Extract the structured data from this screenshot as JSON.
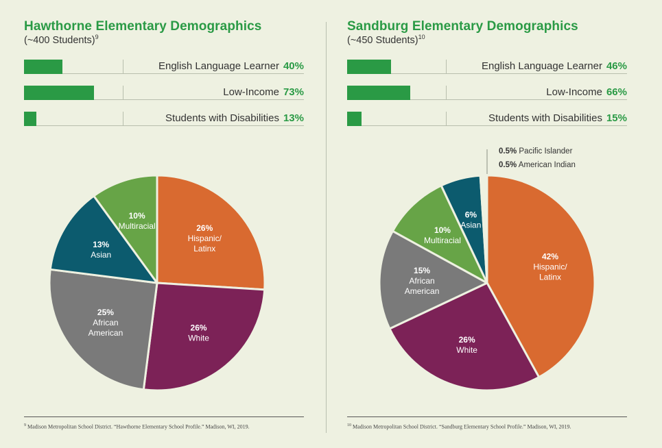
{
  "panels": [
    {
      "title": "Hawthorne Elementary Demographics",
      "subtitle": "(~400 Students)",
      "subtitle_sup": "9",
      "footnote_sup": "9",
      "footnote": "Madison Metropolitan School District. “Hawthorne Elementary School Profile.” Madison, WI, 2019."
    },
    {
      "title": "Sandburg Elementary Demographics",
      "subtitle": "(~450 Students)",
      "subtitle_sup": "10",
      "footnote_sup": "10",
      "footnote": "Madison Metropolitan School District. “Sandburg Elementary School Profile.” Madison, WI, 2019."
    }
  ],
  "chart_data": [
    {
      "type": "bar",
      "orientation": "horizontal",
      "school": "Hawthorne Elementary",
      "categories": [
        "English Language Learner",
        "Low-Income",
        "Students with Disabilities"
      ],
      "values": [
        40,
        73,
        13
      ],
      "value_labels": [
        "40%",
        "73%",
        "13%"
      ],
      "unit": "%",
      "xlim": [
        0,
        100
      ],
      "color": "#2a9a45"
    },
    {
      "type": "pie",
      "school": "Hawthorne Elementary",
      "slices": [
        {
          "pct": "26%",
          "lines": [
            "Hispanic/",
            "Latinx"
          ],
          "value": 26,
          "color": "#d96a30"
        },
        {
          "pct": "26%",
          "lines": [
            "White"
          ],
          "value": 26,
          "color": "#7c2257"
        },
        {
          "pct": "25%",
          "lines": [
            "African",
            "American"
          ],
          "value": 25,
          "color": "#7a7a7a"
        },
        {
          "pct": "13%",
          "lines": [
            "Asian"
          ],
          "value": 13,
          "color": "#0c5b6e"
        },
        {
          "pct": "10%",
          "lines": [
            "Multiracial"
          ],
          "value": 10,
          "color": "#67a447"
        }
      ]
    },
    {
      "type": "bar",
      "orientation": "horizontal",
      "school": "Sandburg Elementary",
      "categories": [
        "English Language Learner",
        "Low-Income",
        "Students with Disabilities"
      ],
      "values": [
        46,
        66,
        15
      ],
      "value_labels": [
        "46%",
        "66%",
        "15%"
      ],
      "unit": "%",
      "xlim": [
        0,
        100
      ],
      "color": "#2a9a45"
    },
    {
      "type": "pie",
      "school": "Sandburg Elementary",
      "slices": [
        {
          "pct": "42%",
          "lines": [
            "Hispanic/",
            "Latinx"
          ],
          "value": 42,
          "color": "#d96a30"
        },
        {
          "pct": "26%",
          "lines": [
            "White"
          ],
          "value": 26,
          "color": "#7c2257"
        },
        {
          "pct": "15%",
          "lines": [
            "African",
            "American"
          ],
          "value": 15,
          "color": "#7a7a7a"
        },
        {
          "pct": "10%",
          "lines": [
            "Multiracial"
          ],
          "value": 10,
          "color": "#67a447"
        },
        {
          "pct": "6%",
          "lines": [
            "Asian"
          ],
          "value": 6,
          "color": "#0c5b6e"
        },
        {
          "pct": "0.5%",
          "lines": [
            "Pacific Islander"
          ],
          "value": 0.5,
          "color": "#eef1e1",
          "callout": true
        },
        {
          "pct": "0.5%",
          "lines": [
            "American Indian"
          ],
          "value": 0.5,
          "color": "#eef1e1",
          "callout": true
        }
      ]
    }
  ]
}
